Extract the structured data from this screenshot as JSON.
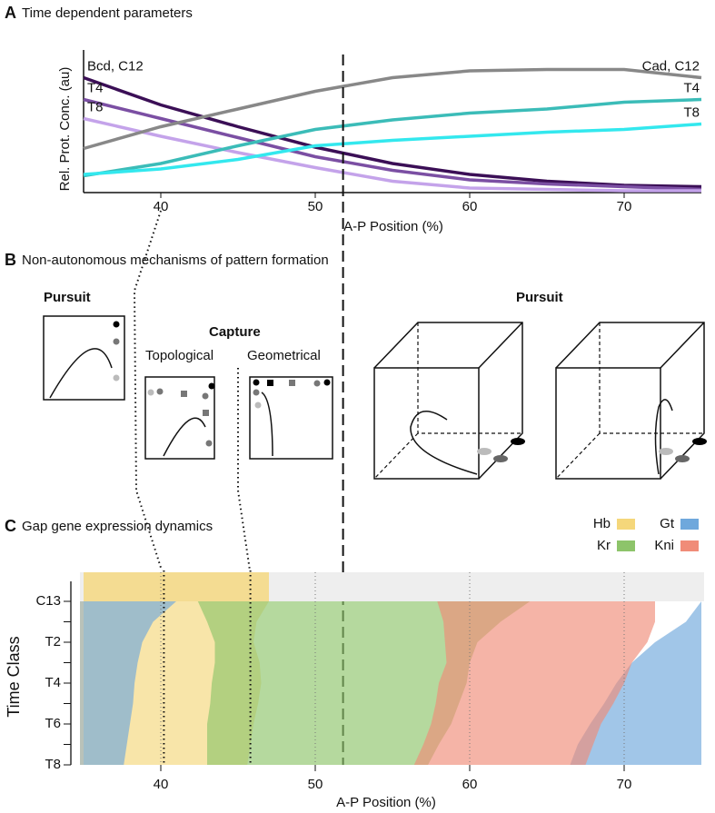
{
  "chart_data": [
    {
      "type": "line",
      "panel": "A",
      "title": "Time dependent parameters",
      "x_label": "A-P Position (%)",
      "y_label": "Rel. Prot. Conc. (au)",
      "x": [
        35,
        40,
        45,
        50,
        55,
        60,
        65,
        70,
        75
      ],
      "xlim": [
        35,
        75
      ],
      "xticks": [
        40,
        50,
        60,
        70
      ],
      "ylim": [
        0,
        1
      ],
      "dashed_line_x": 51.8,
      "series": [
        {
          "name": "Bcd, C12",
          "color": "#3b0f56",
          "label_position": "start",
          "values": [
            0.83,
            0.63,
            0.47,
            0.32,
            0.2,
            0.12,
            0.07,
            0.04,
            0.03
          ]
        },
        {
          "name": "T4",
          "color": "#7b4fa3",
          "label_position": "start",
          "values": [
            0.67,
            0.53,
            0.39,
            0.25,
            0.15,
            0.08,
            0.05,
            0.03,
            0.01
          ]
        },
        {
          "name": "T8",
          "color": "#c4a3ea",
          "label_position": "start",
          "values": [
            0.53,
            0.4,
            0.28,
            0.17,
            0.07,
            0.02,
            0.01,
            0,
            0
          ]
        },
        {
          "name": "Cad, C12",
          "color": "#888888",
          "label_position": "end",
          "values": [
            0.31,
            0.47,
            0.6,
            0.73,
            0.83,
            0.88,
            0.89,
            0.89,
            0.83
          ]
        },
        {
          "name": "T4",
          "color": "#3bbcb8",
          "label_position": "end",
          "values": [
            0.11,
            0.2,
            0.33,
            0.45,
            0.52,
            0.57,
            0.6,
            0.65,
            0.67
          ]
        },
        {
          "name": "T8",
          "color": "#33e8ee",
          "label_position": "end",
          "values": [
            0.12,
            0.16,
            0.23,
            0.33,
            0.37,
            0.4,
            0.43,
            0.45,
            0.49
          ]
        }
      ]
    },
    {
      "type": "domains",
      "panel": "C",
      "title": "Gap gene expression dynamics",
      "x_label": "A-P Position (%)",
      "y_label": "Time Class",
      "categories": [
        "C13",
        null,
        "T2",
        null,
        "T4",
        null,
        "T6",
        null,
        "T8"
      ],
      "xlim": [
        35,
        75
      ],
      "xticks": [
        40,
        50,
        60,
        70
      ],
      "grid": true,
      "dashed_line_x": 51.8,
      "dotted_lines_x": [
        40.2,
        45.8
      ],
      "series": [
        {
          "name": "Hb",
          "color": "#f5d77b",
          "domains": [
            {
              "left": [
                35,
                35,
                35,
                35,
                35,
                35,
                35,
                35,
                35
              ],
              "right": [
                47,
                46.2,
                46,
                46.4,
                46.5,
                46.3,
                46,
                45.8,
                45.6
              ]
            }
          ]
        },
        {
          "name": "Gt",
          "color": "#6fa8dc",
          "domains": [
            {
              "left": [
                35,
                35,
                35,
                35,
                35,
                35,
                35,
                35,
                35
              ],
              "right": [
                41,
                39.5,
                38.8,
                38.5,
                38.3,
                38.2,
                38,
                37.8,
                37.6
              ]
            },
            {
              "left": [
                75,
                74,
                72,
                70.5,
                69.5,
                68.7,
                67.8,
                67,
                66.5
              ],
              "right": [
                75,
                75,
                75,
                75,
                75,
                75,
                75,
                75,
                75
              ]
            }
          ]
        },
        {
          "name": "Kr",
          "color": "#8dc46a",
          "domains": [
            {
              "left": [
                42.4,
                43,
                43.5,
                43.5,
                43.3,
                43.2,
                43,
                43,
                43
              ],
              "right": [
                63.9,
                62,
                60.5,
                60,
                59.8,
                59.3,
                58.8,
                58,
                57.3
              ]
            }
          ]
        },
        {
          "name": "Kni",
          "color": "#f08c78",
          "domains": [
            {
              "left": [
                57.9,
                58.3,
                58.4,
                58.5,
                58,
                57.8,
                57.5,
                57,
                56.4
              ],
              "right": [
                72,
                72,
                71.5,
                70.5,
                70,
                69.3,
                68.5,
                68,
                67.5
              ]
            }
          ]
        }
      ]
    }
  ],
  "diagram": {
    "panel": "B",
    "title": "Non-autonomous mechanisms of pattern formation",
    "left_heading": "Pursuit",
    "capture_heading": "Capture",
    "topological": "Topological",
    "geometrical": "Geometrical",
    "right_heading": "Pursuit"
  }
}
